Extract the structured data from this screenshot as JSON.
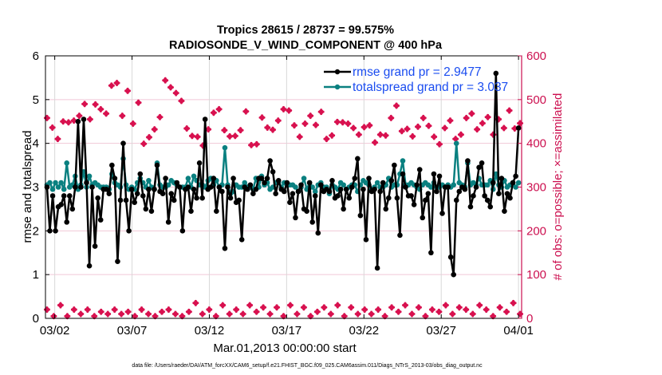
{
  "chart_data": {
    "type": "line",
    "title": [
      "Tropics 28615 / 28737 = 99.575%",
      "RADIOSONDE_V_WIND_COMPONENT @ 400 hPa"
    ],
    "xlabel": "Mar.01,2013 00:00:00 start",
    "ylabel_left": "rmse and totalspread",
    "ylabel_right": "# of obs: o=possible; ×=assimilated",
    "footnote": "data file: /Users/raeder/DAI/ATM_forcXX/CAM6_setup/f.e21.FHIST_BGC.f09_025.CAM6assim.011/Diags_NTrS_2013-03/obs_diag_output.nc",
    "x_unit": "days since Mar.01 00:00",
    "xlim": [
      0.4,
      31.2
    ],
    "x_ticks": [
      {
        "value": 1,
        "label": "03/02"
      },
      {
        "value": 6,
        "label": "03/07"
      },
      {
        "value": 11,
        "label": "03/12"
      },
      {
        "value": 16,
        "label": "03/17"
      },
      {
        "value": 21,
        "label": "03/22"
      },
      {
        "value": 26,
        "label": "03/27"
      },
      {
        "value": 31,
        "label": "04/01"
      }
    ],
    "ylim_left": [
      0,
      6
    ],
    "y_ticks_left": [
      0,
      1,
      2,
      3,
      4,
      5,
      6
    ],
    "ylim_right": [
      0,
      600
    ],
    "y_ticks_right": [
      0,
      100,
      200,
      300,
      400,
      500,
      600
    ],
    "grid": true,
    "legend_position": "top-right",
    "colors": {
      "rmse": "#000000",
      "totalspread": "#0a8080",
      "obs": "#d8114f",
      "legend_text": "#1a4cf0",
      "grid_h": "#f0c8d6",
      "grid_v": "#d8d8d8"
    },
    "x_start": 0.5,
    "x_step": 0.25,
    "series": [
      {
        "name": "rmse grand pr = 2.9477",
        "axis": "left",
        "values": [
          3.0,
          2.0,
          2.8,
          2.0,
          2.55,
          2.6,
          2.8,
          2.2,
          2.8,
          2.5,
          3.0,
          4.5,
          3.0,
          4.55,
          3.1,
          1.2,
          3.0,
          1.65,
          2.75,
          2.25,
          2.95,
          2.95,
          2.85,
          3.5,
          3.2,
          1.3,
          2.7,
          4.0,
          2.7,
          2.0,
          2.95,
          2.65,
          2.85,
          3.3,
          2.8,
          2.5,
          2.95,
          2.45,
          2.95,
          3.5,
          2.9,
          2.85,
          3.2,
          2.2,
          2.85,
          2.7,
          3.1,
          3.0,
          2.0,
          2.95,
          3.0,
          2.45,
          2.95,
          2.75,
          3.55,
          2.75,
          4.55,
          2.95,
          3.0,
          3.2,
          2.45,
          3.0,
          2.9,
          1.6,
          3.0,
          2.75,
          3.2,
          2.65,
          2.7,
          1.8,
          3.0,
          2.95,
          3.05,
          2.85,
          2.95,
          3.2,
          3.2,
          3.1,
          3.2,
          3.6,
          3.35,
          2.85,
          3.15,
          2.95,
          2.9,
          3.1,
          2.65,
          2.85,
          2.3,
          2.9,
          3.05,
          2.5,
          2.45,
          3.1,
          2.2,
          2.8,
          1.95,
          3.05,
          2.9,
          2.95,
          2.9,
          3.15,
          2.75,
          2.8,
          2.95,
          2.5,
          2.95,
          2.75,
          3.0,
          3.2,
          3.65,
          2.35,
          2.95,
          1.8,
          3.2,
          2.9,
          2.95,
          1.15,
          2.9,
          3.1,
          2.5,
          2.75,
          3.15,
          3.5,
          2.75,
          1.9,
          3.3,
          3.0,
          2.8,
          2.8,
          2.6,
          3.05,
          3.4,
          2.3,
          2.7,
          2.85,
          1.5,
          3.3,
          2.9,
          3.25,
          2.4,
          3.0,
          3.0,
          1.4,
          1.0,
          2.7,
          2.9,
          3.0,
          2.95,
          3.6,
          2.55,
          2.8,
          3.0,
          3.45,
          3.55,
          2.8,
          2.7,
          2.55,
          3.1,
          5.6,
          2.85,
          3.2,
          2.45,
          2.85,
          2.75,
          3.1,
          3.25,
          4.35
        ]
      },
      {
        "name": "totalspread grand pr = 3.037",
        "axis": "left",
        "values": [
          3.05,
          3.1,
          2.95,
          3.1,
          3.0,
          3.1,
          2.95,
          3.55,
          3.0,
          3.05,
          3.25,
          2.95,
          3.05,
          3.35,
          3.0,
          3.25,
          3.05,
          3.1,
          3.05,
          3.0,
          3.0,
          3.0,
          2.95,
          3.3,
          3.1,
          3.05,
          3.0,
          3.65,
          3.05,
          2.95,
          3.0,
          2.95,
          3.1,
          3.2,
          3.1,
          3.0,
          3.15,
          3.0,
          2.95,
          3.55,
          3.05,
          3.0,
          3.0,
          3.05,
          3.15,
          3.1,
          3.05,
          3.0,
          3.0,
          3.0,
          3.2,
          3.0,
          3.25,
          3.15,
          3.05,
          3.05,
          3.0,
          3.15,
          3.2,
          3.05,
          3.15,
          3.0,
          3.05,
          3.9,
          3.05,
          2.85,
          2.9,
          3.05,
          3.0,
          3.0,
          3.1,
          3.0,
          3.0,
          2.95,
          3.2,
          3.0,
          3.25,
          3.05,
          3.1,
          2.95,
          3.0,
          3.1,
          3.1,
          3.0,
          3.1,
          3.05,
          3.05,
          3.05,
          3.0,
          2.9,
          3.0,
          3.2,
          2.95,
          3.1,
          3.0,
          2.9,
          3.05,
          3.1,
          3.0,
          3.0,
          2.85,
          3.05,
          3.0,
          2.95,
          3.1,
          3.05,
          2.95,
          3.0,
          3.05,
          3.05,
          2.9,
          3.05,
          3.15,
          3.1,
          3.05,
          2.95,
          3.0,
          3.1,
          3.0,
          3.0,
          3.05,
          3.2,
          3.0,
          3.05,
          3.05,
          3.3,
          3.6,
          3.05,
          3.05,
          3.1,
          3.05,
          3.0,
          2.95,
          3.05,
          3.1,
          3.05,
          3.0,
          3.1,
          3.0,
          3.0,
          3.05,
          3.0,
          3.05,
          3.0,
          3.05,
          4.0,
          3.1,
          3.05,
          3.0,
          3.55,
          3.05,
          3.1,
          3.05,
          3.2,
          3.05,
          3.05,
          3.05,
          3.15,
          2.95,
          3.3,
          3.05,
          3.0,
          3.15,
          3.0,
          3.05,
          3.1,
          3.0,
          3.1
        ]
      },
      {
        "name": "obs possible (upper)",
        "axis": "right",
        "values": [
          458,
          436,
          410,
          450,
          448,
          452,
          463,
          490,
          455,
          489,
          478,
          468,
          532,
          538,
          463,
          520,
          445,
          493,
          399,
          414,
          432,
          460,
          544,
          528,
          515,
          497,
          434,
          417,
          415,
          395,
          432,
          470,
          478,
          430,
          416,
          417,
          430,
          473,
          396,
          398,
          459,
          436,
          431,
          452,
          478,
          475,
          441,
          415,
          445,
          463,
          442,
          472,
          410,
          418,
          449,
          448,
          445,
          435,
          420,
          437,
          441,
          402,
          420,
          418,
          458,
          486,
          428,
          433,
          416,
          438,
          458,
          440,
          415,
          398,
          435,
          452,
          410,
          420,
          458,
          468,
          432,
          446,
          460,
          420,
          455,
          435,
          475,
          434,
          446
        ]
      },
      {
        "name": "obs assimilated (lower)",
        "axis": "right",
        "values": [
          20,
          5,
          30,
          5,
          20,
          10,
          20,
          5,
          15,
          10,
          20,
          10,
          15,
          5,
          20,
          10,
          5,
          15,
          20,
          10,
          5,
          15,
          35,
          10,
          20,
          5,
          30,
          10,
          20,
          10,
          30,
          15,
          25,
          10,
          25,
          5,
          30,
          10,
          25,
          5,
          15,
          25,
          10,
          30,
          5,
          25,
          10,
          20,
          10,
          20,
          5,
          25,
          15,
          30,
          10,
          25,
          5,
          20,
          15,
          30,
          10,
          25,
          20,
          10,
          30,
          20,
          5,
          25,
          15,
          35,
          10
        ]
      }
    ],
    "legend": [
      {
        "label": "rmse grand pr = 2.9477",
        "color": "#000000"
      },
      {
        "label": "totalspread grand pr = 3.037",
        "color": "#0a8080"
      }
    ]
  }
}
